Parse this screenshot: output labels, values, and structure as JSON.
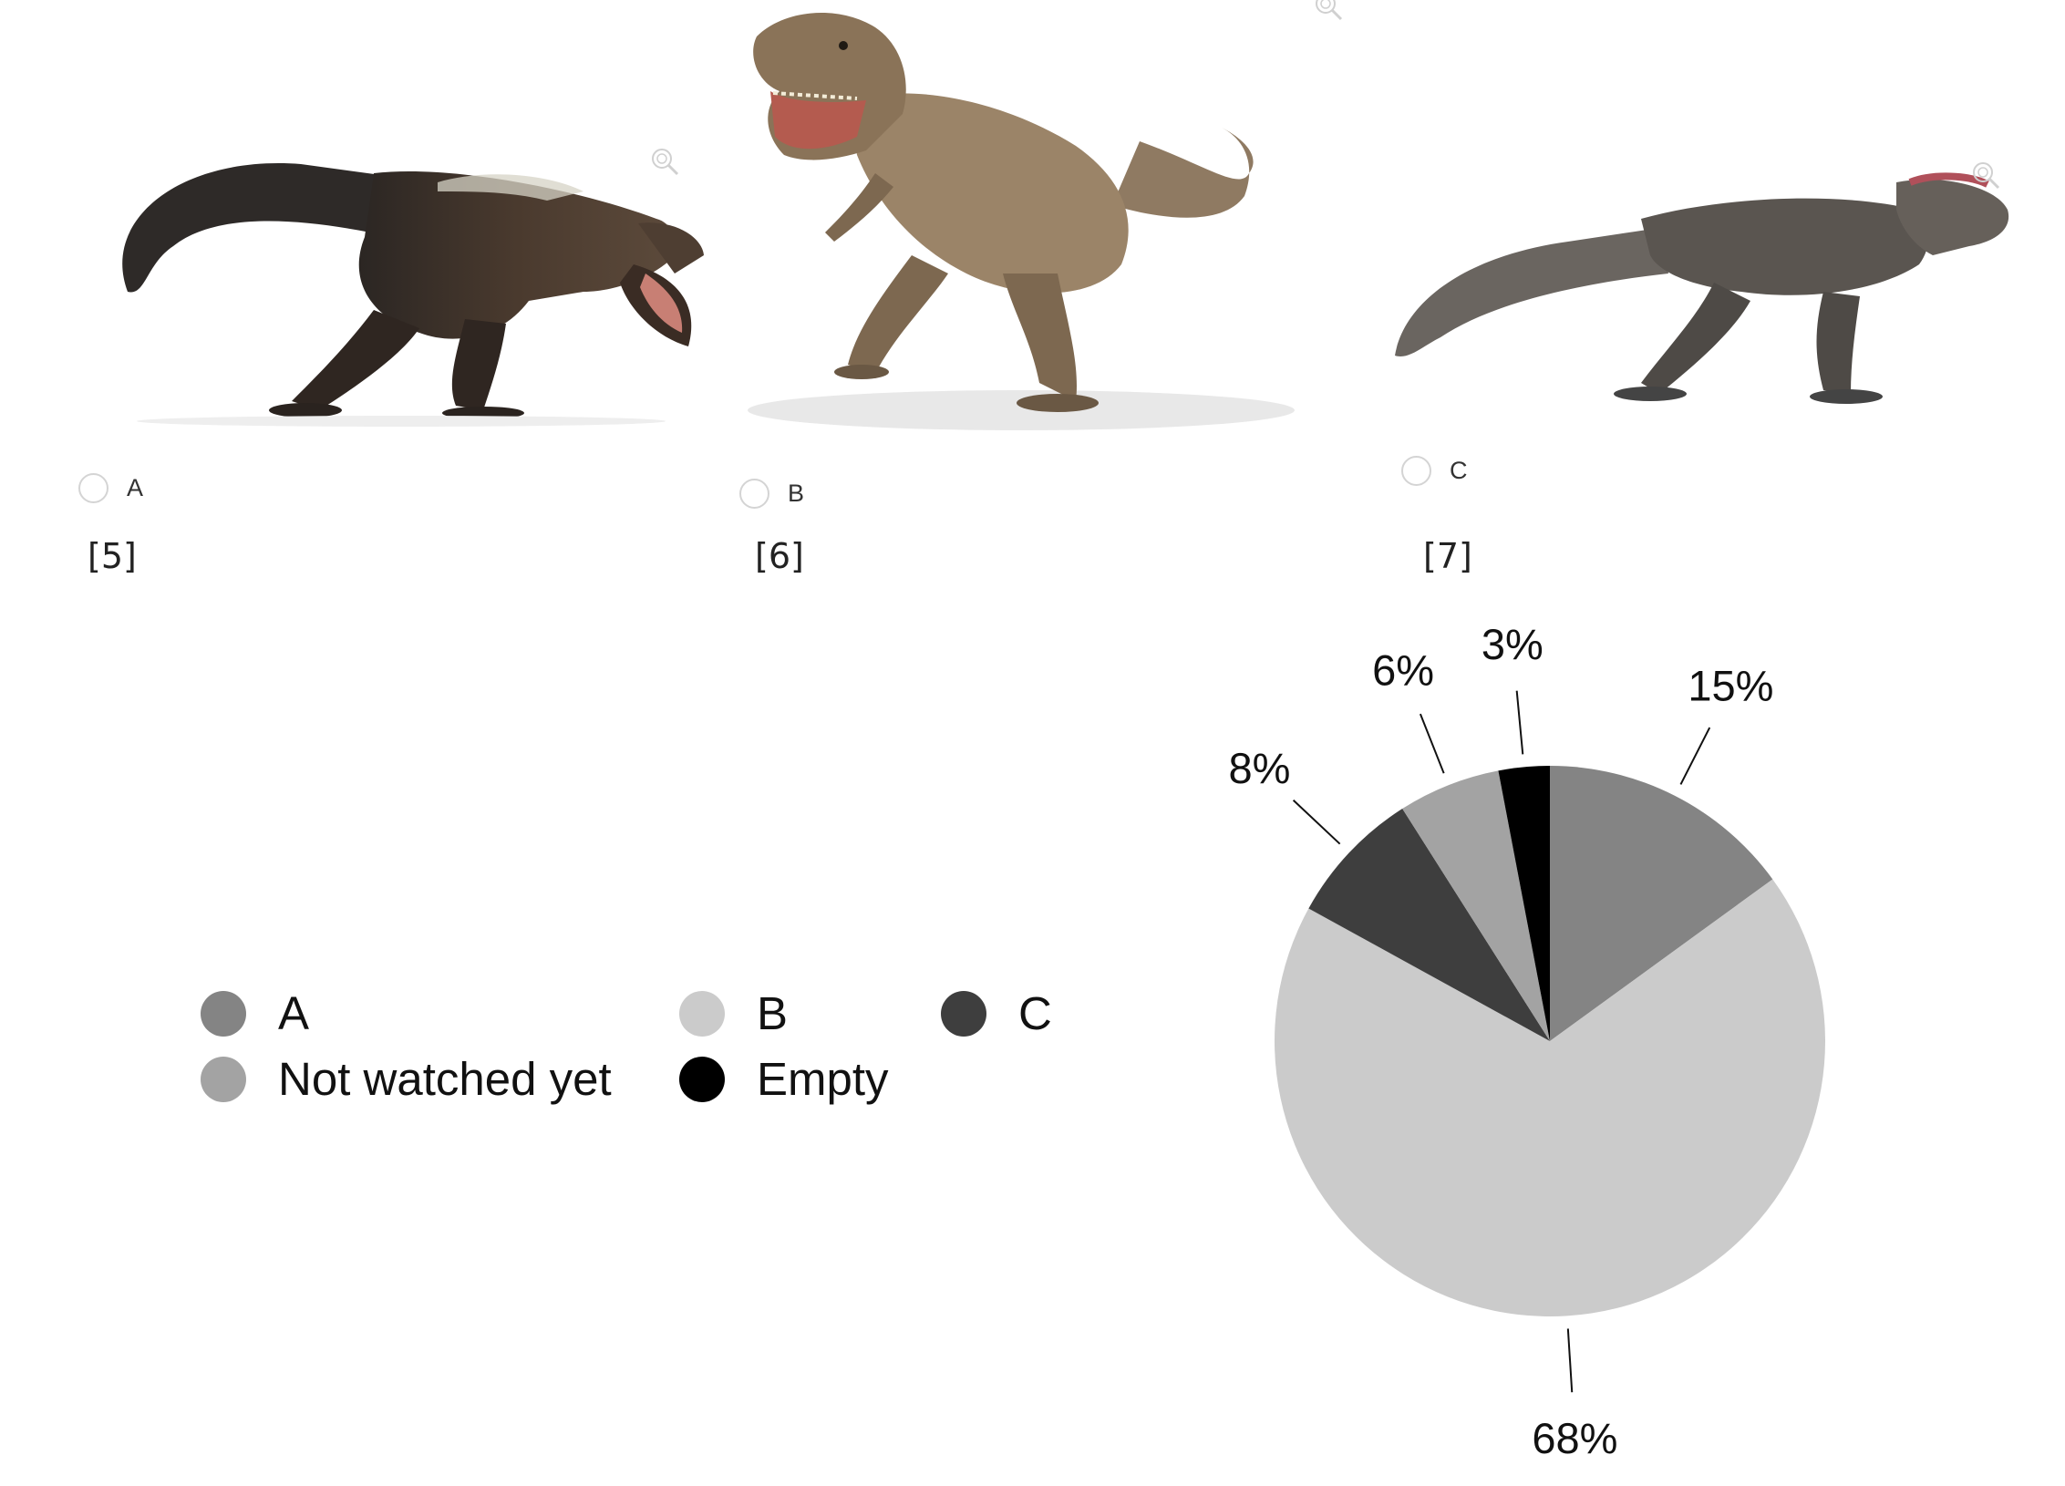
{
  "options": [
    {
      "label": "A",
      "ref": "[5]",
      "image": "feathered-trex-illustration"
    },
    {
      "label": "B",
      "ref": "[6]",
      "image": "jurassic-world-trex-illustration"
    },
    {
      "label": "C",
      "ref": "[7]",
      "image": "scaly-trex-illustration"
    }
  ],
  "chart_data": {
    "type": "pie",
    "slices": [
      {
        "label": "A",
        "value": 15,
        "text": "15%",
        "color": "#848484"
      },
      {
        "label": "B",
        "value": 68,
        "text": "68%",
        "color": "#cbcbcb"
      },
      {
        "label": "C",
        "value": 8,
        "text": "8%",
        "color": "#3e3e3e"
      },
      {
        "label": "Not watched yet",
        "value": 6,
        "text": "6%",
        "color": "#a3a3a3"
      },
      {
        "label": "Empty",
        "value": 3,
        "text": "3%",
        "color": "#000000"
      }
    ],
    "legend_position": "left",
    "legend": [
      "A",
      "B",
      "C",
      "Not watched yet",
      "Empty"
    ]
  }
}
